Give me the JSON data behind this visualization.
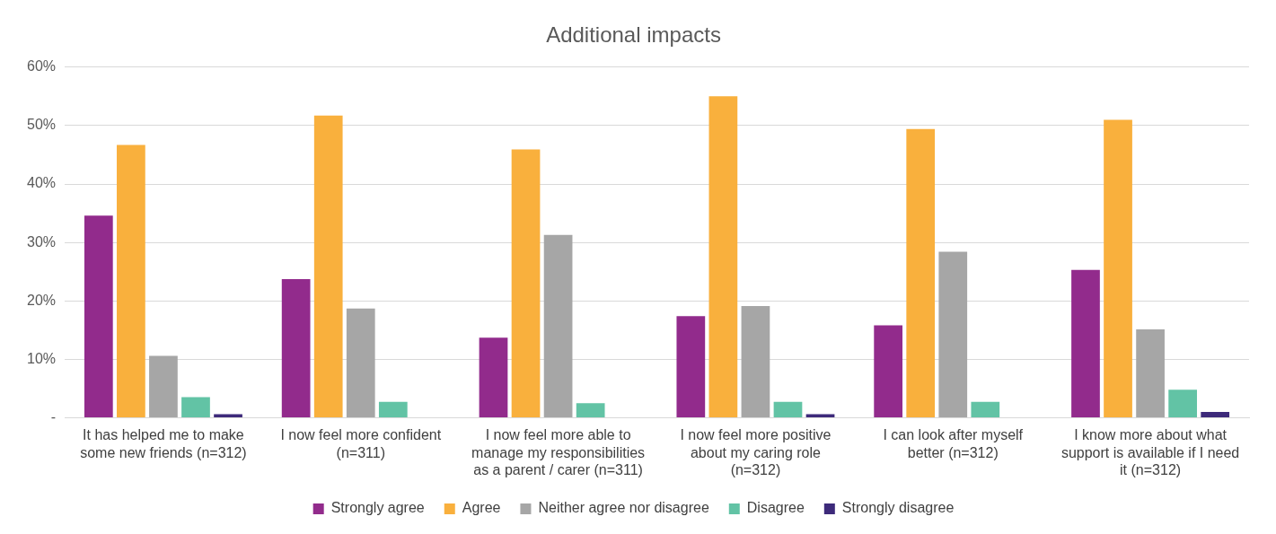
{
  "chart_data": {
    "type": "bar",
    "title": "Additional impacts",
    "categories": [
      "It has helped me to make some new friends (n=312)",
      "I now feel more confident (n=311)",
      "I now feel more able to manage my responsibilities as a parent / carer (n=311)",
      "I now feel more positive about my caring role (n=312)",
      "I can look after myself better (n=312)",
      "I know more about what support is available if I need it (n=312)"
    ],
    "series": [
      {
        "name": "Strongly agree",
        "color": "#922b8c",
        "values": [
          34.6,
          23.7,
          13.7,
          17.4,
          15.8,
          25.3
        ]
      },
      {
        "name": "Agree",
        "color": "#f9b03d",
        "values": [
          46.7,
          51.7,
          45.9,
          55.0,
          49.4,
          51.0
        ]
      },
      {
        "name": "Neither agree nor disagree",
        "color": "#a6a6a6",
        "values": [
          10.6,
          18.7,
          31.3,
          19.1,
          28.4,
          15.1
        ]
      },
      {
        "name": "Disagree",
        "color": "#62c3a5",
        "values": [
          3.5,
          2.7,
          2.5,
          2.7,
          2.7,
          4.8
        ]
      },
      {
        "name": "Strongly disagree",
        "color": "#3d2a7a",
        "values": [
          0.6,
          0,
          0,
          0.6,
          0,
          1.0
        ]
      }
    ],
    "ylim": [
      0,
      60
    ],
    "yticks": [
      {
        "value": 0,
        "label": "-"
      },
      {
        "value": 10,
        "label": "10%"
      },
      {
        "value": 20,
        "label": "20%"
      },
      {
        "value": 30,
        "label": "30%"
      },
      {
        "value": 40,
        "label": "40%"
      },
      {
        "value": 50,
        "label": "50%"
      },
      {
        "value": 60,
        "label": "60%"
      }
    ],
    "grid": "y",
    "legend": "bottom"
  }
}
